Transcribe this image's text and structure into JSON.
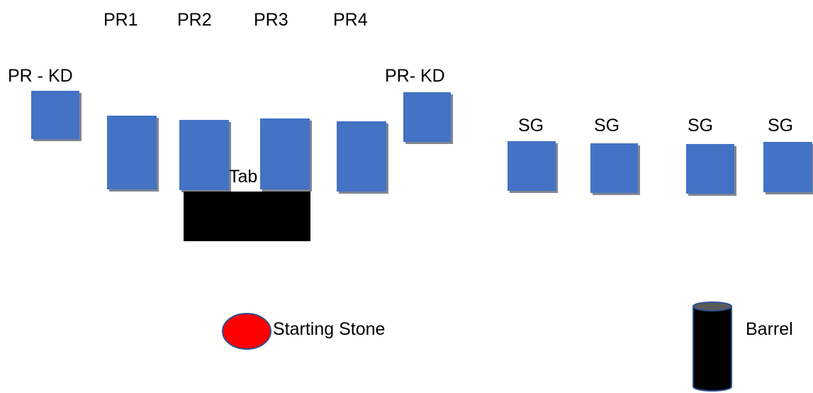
{
  "labels": {
    "pr1": "PR1",
    "pr2": "PR2",
    "pr3": "PR3",
    "pr4": "PR4",
    "pr_kd_left": "PR - KD",
    "pr_kd_right": "PR- KD",
    "sg1": "SG",
    "sg2": "SG",
    "sg3": "SG",
    "sg4": "SG",
    "table": "Tab",
    "starting_stone": "Starting Stone",
    "barrel": "Barrel"
  },
  "colors": {
    "block_fill": "#4472C4",
    "block_shadow": "#7F8593",
    "table_fill": "#000000",
    "stone_fill": "#FF0000",
    "stone_stroke": "#2F528F",
    "barrel_body": "#000000",
    "barrel_top": "#595959",
    "barrel_outline": "#2F528F"
  }
}
